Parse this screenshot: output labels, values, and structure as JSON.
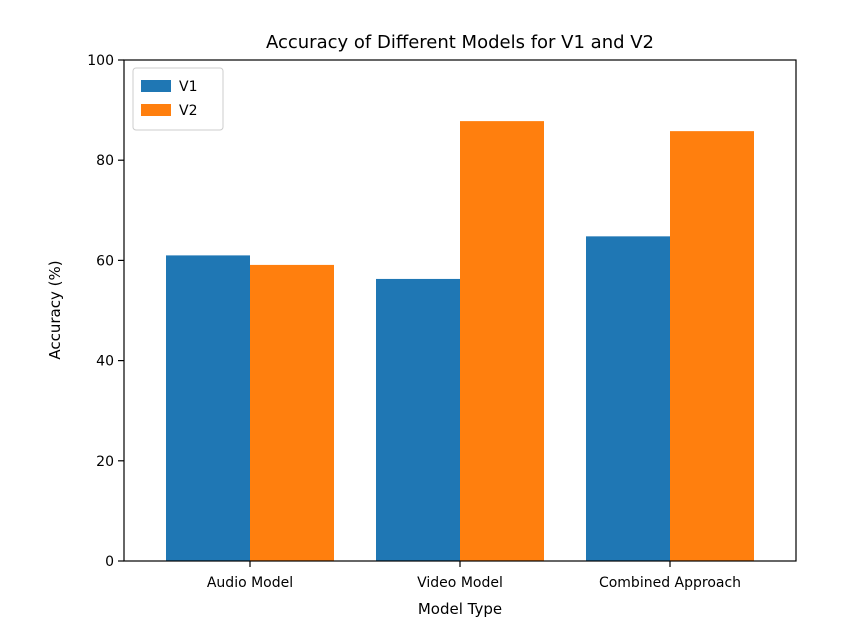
{
  "chart_data": {
    "type": "bar",
    "title": "Accuracy of Different Models for V1 and V2",
    "xlabel": "Model Type",
    "ylabel": "Accuracy (%)",
    "categories": [
      "Audio Model",
      "Video Model",
      "Combined Approach"
    ],
    "series": [
      {
        "name": "V1",
        "color": "#1f77b4",
        "values": [
          61.0,
          56.3,
          64.8
        ]
      },
      {
        "name": "V2",
        "color": "#ff7f0e",
        "values": [
          59.1,
          87.8,
          85.8
        ]
      }
    ],
    "ylim": [
      0,
      100
    ],
    "yticks": [
      0,
      20,
      40,
      60,
      80,
      100
    ],
    "grid": false,
    "legend_position": "top-left"
  }
}
